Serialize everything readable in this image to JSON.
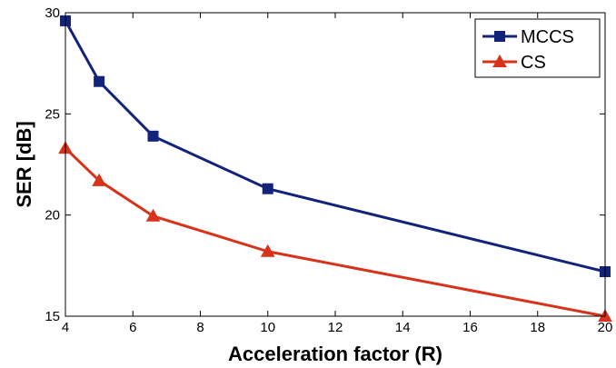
{
  "chart_data": {
    "type": "line",
    "title": "",
    "xlabel": "Acceleration factor (R)",
    "ylabel": "SER [dB]",
    "xlim": [
      4,
      20
    ],
    "ylim": [
      15,
      30
    ],
    "xticks": [
      4,
      6,
      8,
      10,
      12,
      14,
      16,
      18,
      20
    ],
    "yticks": [
      15,
      20,
      25,
      30
    ],
    "grid": false,
    "legend_position": "top-right",
    "x": [
      4,
      5,
      6.6,
      10,
      20
    ],
    "series": [
      {
        "name": "MCCS",
        "color": "#14237a",
        "marker": "square",
        "values": [
          29.6,
          26.6,
          23.9,
          21.3,
          17.2
        ]
      },
      {
        "name": "CS",
        "color": "#d9321a",
        "marker": "triangle",
        "values": [
          23.3,
          21.7,
          19.95,
          18.2,
          15.0
        ]
      }
    ]
  }
}
